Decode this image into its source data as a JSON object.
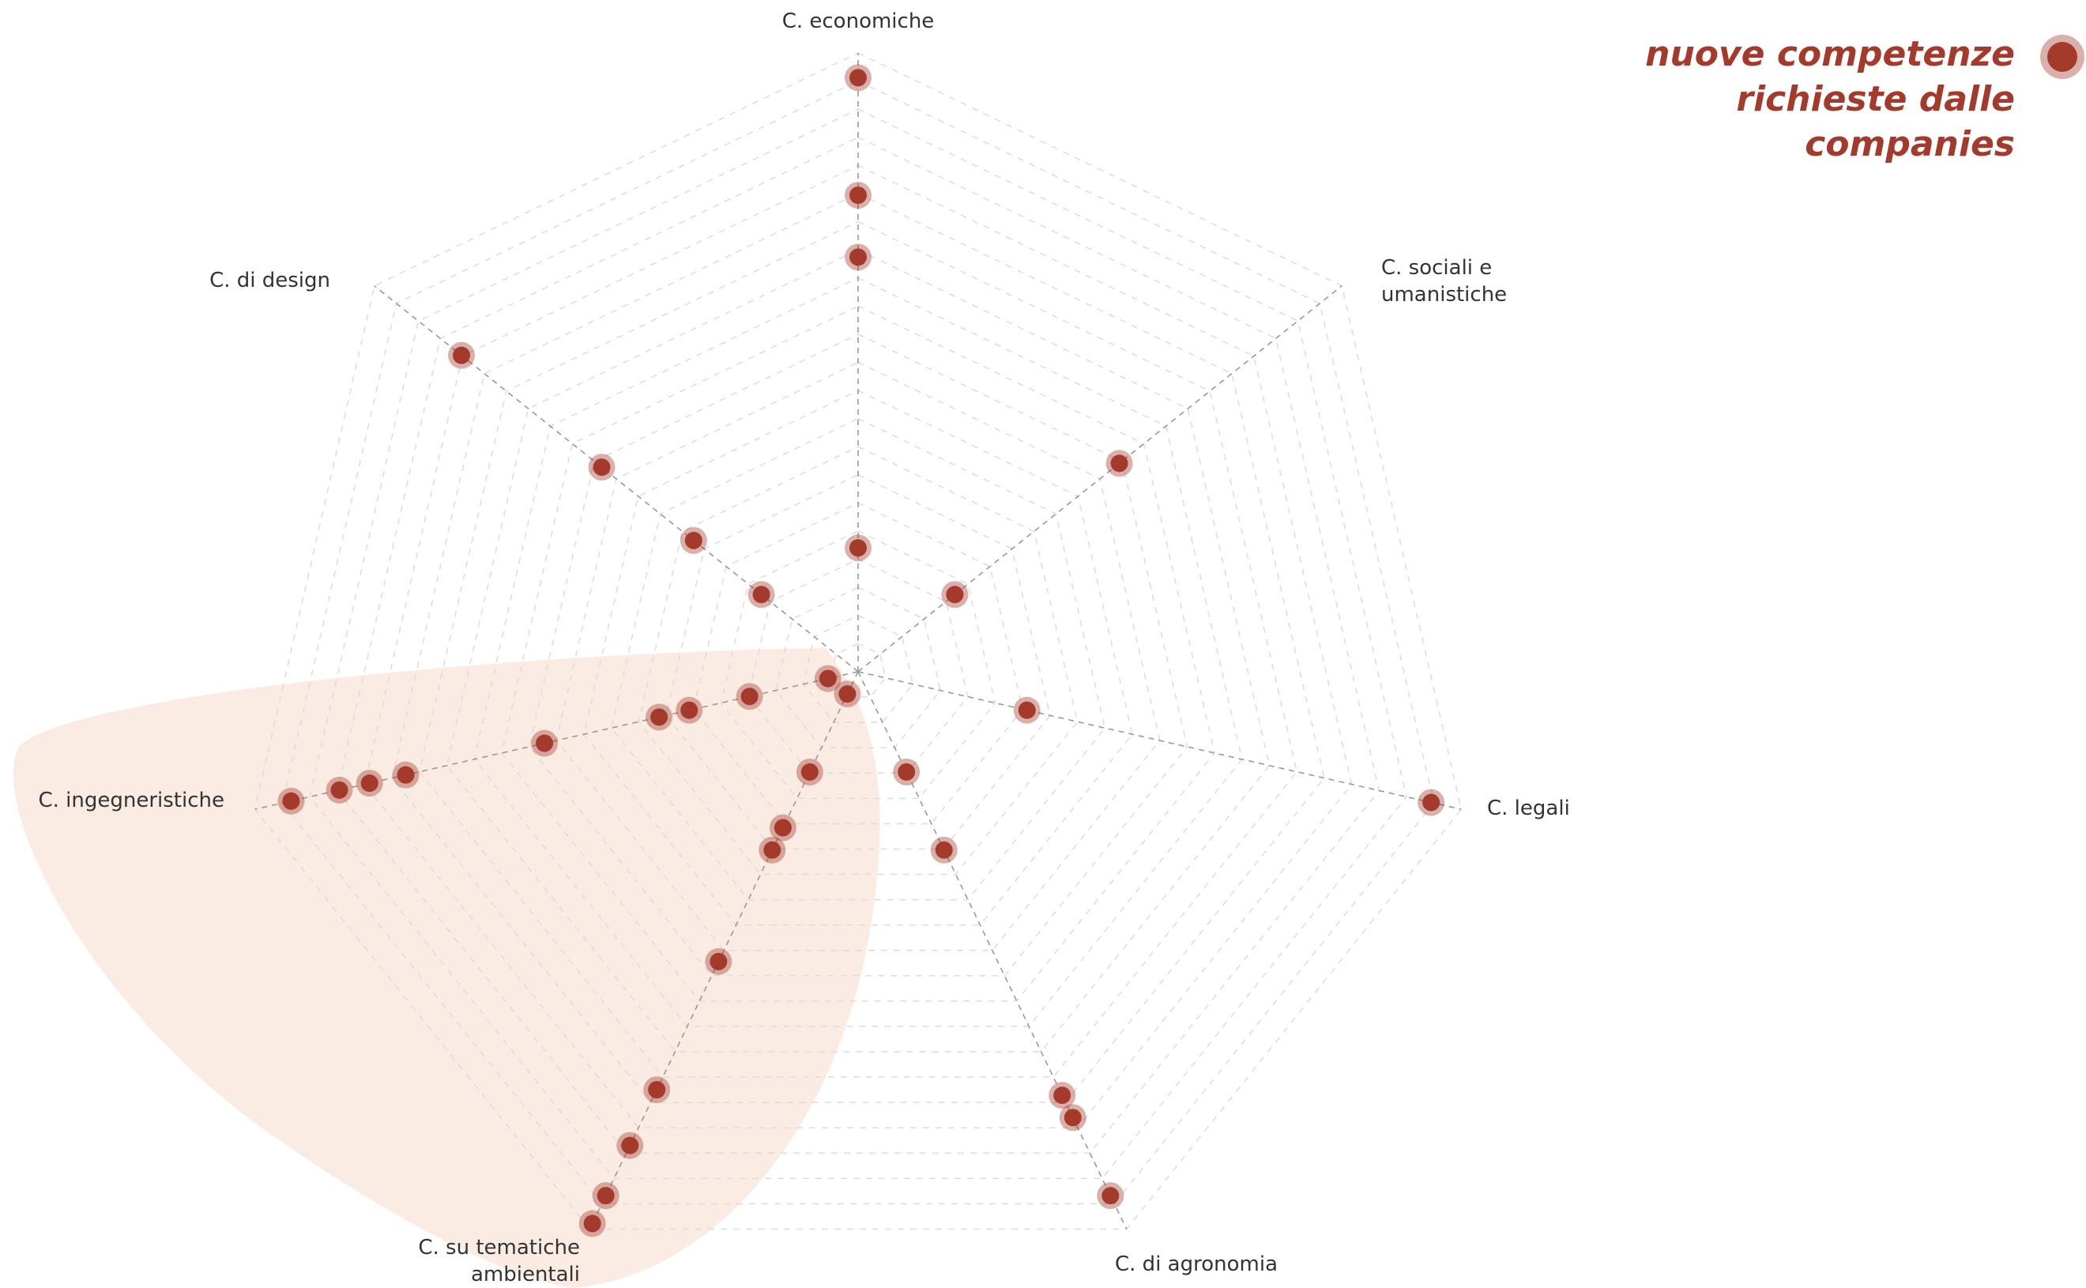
{
  "chart_data": {
    "type": "radar",
    "axes": [
      "C. economiche",
      "C. sociali e umanistiche",
      "C. legali",
      "C. di agronomia",
      "C. su tematiche ambientali",
      "C. ingegneristiche",
      "C. di design"
    ],
    "ylim": [
      0,
      100
    ],
    "series": [
      {
        "name": "nuove competenze richieste dalle companies",
        "color": "#a33a2c",
        "values": [
          [
            96,
            77,
            67,
            20
          ],
          [
            54,
            20
          ],
          [
            95,
            28
          ],
          [
            18,
            32,
            76,
            80,
            94
          ],
          [
            4,
            18,
            28,
            32,
            52,
            75,
            85,
            94,
            99
          ],
          [
            5,
            18,
            28,
            33,
            52,
            75,
            81,
            86,
            94
          ],
          [
            20,
            34,
            53,
            82
          ]
        ]
      }
    ]
  }
}
